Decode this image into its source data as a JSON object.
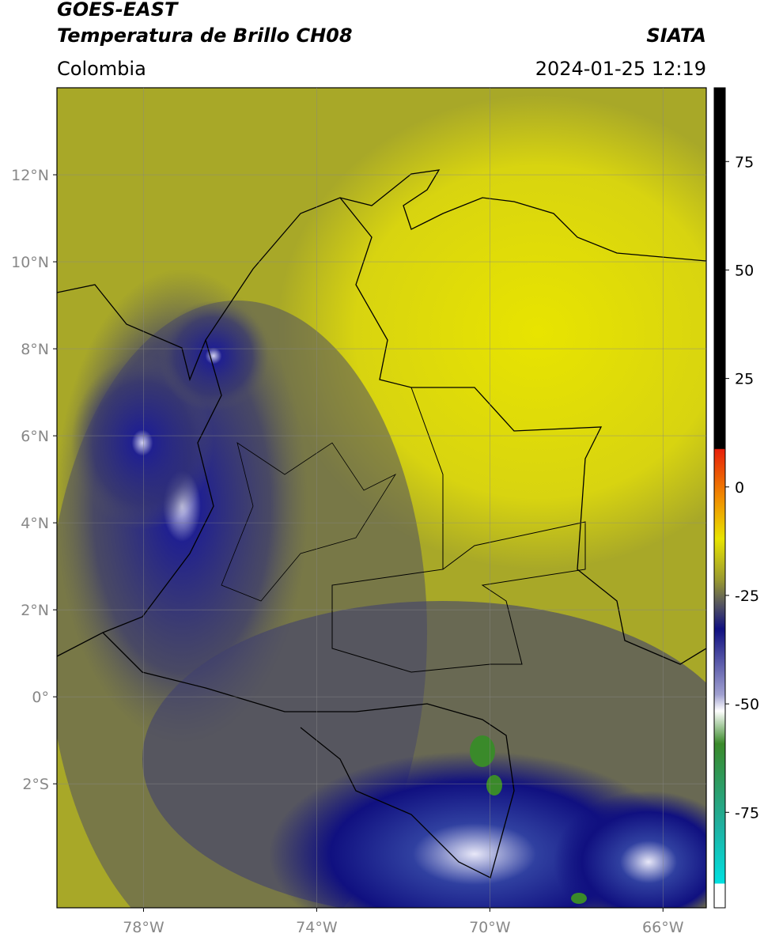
{
  "header": {
    "satellite": "GOES-EAST",
    "product": "Temperatura de Brillo CH08",
    "source": "SIATA",
    "region": "Colombia",
    "datetime": "2024-01-25 12:19"
  },
  "map": {
    "lat_range": [
      -4.85,
      14
    ],
    "lon_range": [
      -80,
      -65
    ],
    "lat_ticks": [
      {
        "value": 12,
        "label": "12°N"
      },
      {
        "value": 10,
        "label": "10°N"
      },
      {
        "value": 8,
        "label": "8°N"
      },
      {
        "value": 6,
        "label": "6°N"
      },
      {
        "value": 4,
        "label": "4°N"
      },
      {
        "value": 2,
        "label": "2°N"
      },
      {
        "value": 0,
        "label": "0°"
      },
      {
        "value": -2,
        "label": "2°S"
      }
    ],
    "lon_ticks": [
      {
        "value": -78,
        "label": "78°W"
      },
      {
        "value": -74,
        "label": "74°W"
      },
      {
        "value": -70,
        "label": "70°W"
      },
      {
        "value": -66,
        "label": "66°W"
      }
    ]
  },
  "colorbar": {
    "range": [
      -97,
      92
    ],
    "ticks": [
      75,
      50,
      25,
      0,
      -25,
      -50,
      -75
    ]
  }
}
